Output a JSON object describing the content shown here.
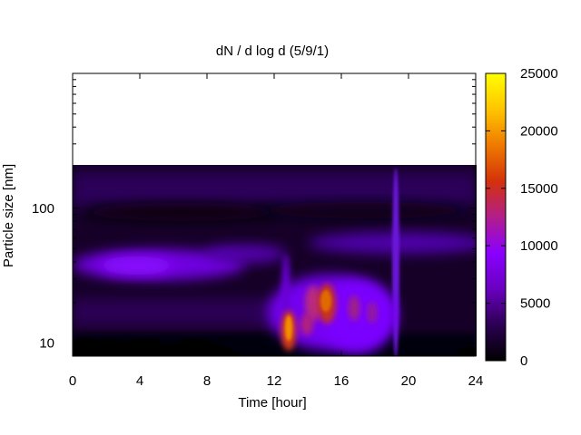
{
  "chart_data": {
    "type": "heatmap",
    "title": "dN / d log d (5/9/1)",
    "xlabel": "Time [hour]",
    "ylabel": "Particle size [nm]",
    "xlim": [
      0,
      24
    ],
    "x_ticks": [
      0,
      4,
      8,
      12,
      16,
      20,
      24
    ],
    "y_scale": "log",
    "ylim": [
      8,
      1000
    ],
    "y_ticks": [
      10,
      100
    ],
    "data_size_range_nm": [
      8.5,
      210
    ],
    "colorbar": {
      "range": [
        0,
        25000
      ],
      "ticks": [
        0,
        5000,
        10000,
        15000,
        20000,
        25000
      ],
      "colormap": [
        "#000000",
        "#2b0052",
        "#6a00c0",
        "#8a00ff",
        "#b21e8a",
        "#d4320a",
        "#ef7a00",
        "#ffc500",
        "#ffff00"
      ]
    },
    "features": [
      {
        "time": 4,
        "size_nm": 40,
        "value": 7000
      },
      {
        "time": 8,
        "size_nm": 45,
        "value": 5500
      },
      {
        "time": 12.8,
        "size_nm": 11.5,
        "value": 17000
      },
      {
        "time": 14,
        "size_nm": 13,
        "value": 9000
      },
      {
        "time": 14.5,
        "size_nm": 22,
        "value": 12000
      },
      {
        "time": 15.4,
        "size_nm": 22,
        "value": 16000
      },
      {
        "time": 16.6,
        "size_nm": 20,
        "value": 9500
      },
      {
        "time": 17.8,
        "size_nm": 19,
        "value": 8500
      },
      {
        "time": 19.1,
        "size_nm": 100,
        "value": 6000
      },
      {
        "time": 10,
        "size_nm": 100,
        "value": 200
      },
      {
        "time": 22,
        "size_nm": 60,
        "value": 5000
      }
    ]
  }
}
